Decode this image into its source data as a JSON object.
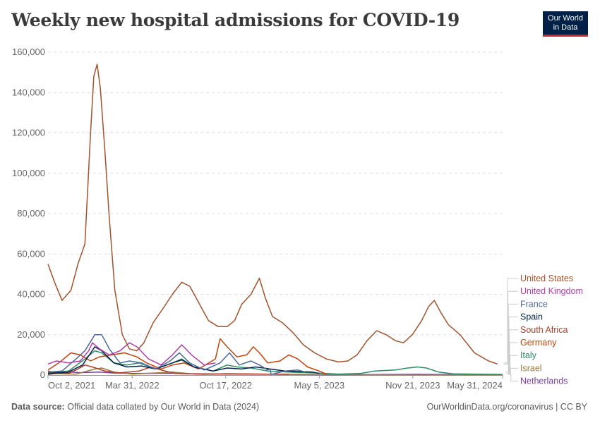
{
  "header": {
    "title": "Weekly new hospital admissions for COVID-19",
    "logo_line1": "Our World",
    "logo_line2": "in Data"
  },
  "footer": {
    "source_label": "Data source:",
    "source_text": "Official data collated by Our World in Data (2024)",
    "link_text": "OurWorldinData.org/coronavirus",
    "license": "| CC BY"
  },
  "colors": {
    "logo_bg": "#002147",
    "logo_accent": "#ce261e",
    "grid": "#dddddd"
  },
  "chart_data": {
    "type": "line",
    "title": "Weekly new hospital admissions for COVID-19",
    "xlabel": "",
    "ylabel": "",
    "ylim": [
      0,
      160000
    ],
    "y_ticks": [
      0,
      20000,
      40000,
      60000,
      80000,
      100000,
      120000,
      140000,
      160000
    ],
    "y_tick_labels": [
      "0",
      "20,000",
      "40,000",
      "60,000",
      "80,000",
      "100,000",
      "120,000",
      "140,000",
      "160,000"
    ],
    "xlim": [
      "2021-10-02",
      "2024-05-31"
    ],
    "x_ticks": [
      "2021-10-02",
      "2022-03-31",
      "2022-10-17",
      "2023-05-05",
      "2023-11-21",
      "2024-05-31"
    ],
    "x_tick_labels": [
      "Oct 2, 2021",
      "Mar 31, 2022",
      "Oct 17, 2022",
      "May 5, 2023",
      "Nov 21, 2023",
      "May 31, 2024"
    ],
    "grid": true,
    "legend_position": "right",
    "series": [
      {
        "name": "United States",
        "color": "#a2522d",
        "points": [
          [
            "2021-10-02",
            55000
          ],
          [
            "2021-10-16",
            46000
          ],
          [
            "2021-11-01",
            37000
          ],
          [
            "2021-11-20",
            42000
          ],
          [
            "2021-12-05",
            55000
          ],
          [
            "2021-12-20",
            65000
          ],
          [
            "2022-01-01",
            120000
          ],
          [
            "2022-01-08",
            148000
          ],
          [
            "2022-01-15",
            154000
          ],
          [
            "2022-01-22",
            142000
          ],
          [
            "2022-02-01",
            110000
          ],
          [
            "2022-02-10",
            78000
          ],
          [
            "2022-02-22",
            42000
          ],
          [
            "2022-03-10",
            20000
          ],
          [
            "2022-03-25",
            13000
          ],
          [
            "2022-04-10",
            12000
          ],
          [
            "2022-04-25",
            16000
          ],
          [
            "2022-05-15",
            26000
          ],
          [
            "2022-06-05",
            33000
          ],
          [
            "2022-06-25",
            40000
          ],
          [
            "2022-07-15",
            46000
          ],
          [
            "2022-08-01",
            44000
          ],
          [
            "2022-08-20",
            36000
          ],
          [
            "2022-09-10",
            27000
          ],
          [
            "2022-10-01",
            24000
          ],
          [
            "2022-10-20",
            24000
          ],
          [
            "2022-11-05",
            27000
          ],
          [
            "2022-11-20",
            35000
          ],
          [
            "2022-12-10",
            40000
          ],
          [
            "2022-12-28",
            48000
          ],
          [
            "2023-01-10",
            38000
          ],
          [
            "2023-01-25",
            29000
          ],
          [
            "2023-02-15",
            26000
          ],
          [
            "2023-03-10",
            21000
          ],
          [
            "2023-04-01",
            15000
          ],
          [
            "2023-04-25",
            11000
          ],
          [
            "2023-05-20",
            8000
          ],
          [
            "2023-06-15",
            6500
          ],
          [
            "2023-07-05",
            7000
          ],
          [
            "2023-07-25",
            10000
          ],
          [
            "2023-08-15",
            17000
          ],
          [
            "2023-09-05",
            22000
          ],
          [
            "2023-09-25",
            20000
          ],
          [
            "2023-10-15",
            17000
          ],
          [
            "2023-11-01",
            16000
          ],
          [
            "2023-11-20",
            20000
          ],
          [
            "2023-12-10",
            27000
          ],
          [
            "2023-12-25",
            34000
          ],
          [
            "2024-01-06",
            37000
          ],
          [
            "2024-01-20",
            31000
          ],
          [
            "2024-02-05",
            25000
          ],
          [
            "2024-03-01",
            20000
          ],
          [
            "2024-04-01",
            11000
          ],
          [
            "2024-05-01",
            7000
          ],
          [
            "2024-05-20",
            5500
          ]
        ]
      },
      {
        "name": "United Kingdom",
        "color": "#b13ea8",
        "points": [
          [
            "2021-10-02",
            5500
          ],
          [
            "2021-10-20",
            7000
          ],
          [
            "2021-11-15",
            6000
          ],
          [
            "2021-12-10",
            7000
          ],
          [
            "2021-12-28",
            12000
          ],
          [
            "2022-01-05",
            16000
          ],
          [
            "2022-01-20",
            13000
          ],
          [
            "2022-02-10",
            10000
          ],
          [
            "2022-03-05",
            12000
          ],
          [
            "2022-03-25",
            16000
          ],
          [
            "2022-04-10",
            14000
          ],
          [
            "2022-05-05",
            8000
          ],
          [
            "2022-06-01",
            5000
          ],
          [
            "2022-06-25",
            10000
          ],
          [
            "2022-07-15",
            15000
          ],
          [
            "2022-08-05",
            10000
          ],
          [
            "2022-09-01",
            5000
          ],
          [
            "2022-09-25",
            6000
          ]
        ]
      },
      {
        "name": "France",
        "color": "#4c6a9c",
        "points": [
          [
            "2021-10-02",
            1500
          ],
          [
            "2021-11-01",
            2000
          ],
          [
            "2021-12-01",
            8000
          ],
          [
            "2021-12-20",
            12000
          ],
          [
            "2022-01-10",
            20000
          ],
          [
            "2022-01-25",
            20000
          ],
          [
            "2022-02-10",
            13000
          ],
          [
            "2022-03-05",
            6000
          ],
          [
            "2022-03-25",
            7000
          ],
          [
            "2022-04-20",
            6000
          ],
          [
            "2022-05-20",
            3000
          ],
          [
            "2022-06-20",
            7000
          ],
          [
            "2022-07-10",
            11000
          ],
          [
            "2022-08-01",
            6000
          ],
          [
            "2022-09-01",
            2500
          ],
          [
            "2022-10-05",
            6000
          ],
          [
            "2022-10-25",
            11000
          ],
          [
            "2022-11-15",
            5000
          ],
          [
            "2022-12-10",
            7000
          ],
          [
            "2022-12-28",
            5000
          ],
          [
            "2023-01-15",
            2500
          ],
          [
            "2023-01-20",
            3000
          ],
          [
            "2023-01-22",
            300
          ],
          [
            "2023-02-20",
            2000
          ],
          [
            "2023-03-20",
            2500
          ],
          [
            "2023-04-05",
            1500
          ]
        ]
      },
      {
        "name": "Spain",
        "color": "#002147",
        "points": [
          [
            "2021-10-02",
            800
          ],
          [
            "2021-11-15",
            1500
          ],
          [
            "2021-12-15",
            5000
          ],
          [
            "2022-01-10",
            14000
          ],
          [
            "2022-01-25",
            12000
          ],
          [
            "2022-02-20",
            6000
          ],
          [
            "2022-03-20",
            4000
          ],
          [
            "2022-04-20",
            4500
          ],
          [
            "2022-05-20",
            3000
          ],
          [
            "2022-06-25",
            6000
          ],
          [
            "2022-07-15",
            7500
          ],
          [
            "2022-08-10",
            4000
          ],
          [
            "2022-09-20",
            2000
          ],
          [
            "2022-10-20",
            3500
          ],
          [
            "2022-11-20",
            3000
          ],
          [
            "2022-12-20",
            4000
          ],
          [
            "2023-01-20",
            3000
          ],
          [
            "2023-02-20",
            2000
          ],
          [
            "2023-04-20",
            1500
          ],
          [
            "2023-05-05",
            800
          ]
        ]
      },
      {
        "name": "South Africa",
        "color": "#b03f2a",
        "points": [
          [
            "2021-10-02",
            2000
          ],
          [
            "2021-10-20",
            1000
          ],
          [
            "2021-11-15",
            800
          ],
          [
            "2021-12-05",
            3000
          ],
          [
            "2021-12-20",
            5000
          ],
          [
            "2022-01-05",
            4000
          ],
          [
            "2022-02-01",
            2000
          ],
          [
            "2022-03-01",
            1000
          ],
          [
            "2022-04-15",
            2000
          ],
          [
            "2022-05-10",
            4000
          ],
          [
            "2022-06-01",
            2500
          ],
          [
            "2022-07-01",
            800
          ],
          [
            "2022-09-01",
            500
          ],
          [
            "2022-12-01",
            500
          ],
          [
            "2023-03-01",
            400
          ]
        ]
      },
      {
        "name": "Germany",
        "color": "#c1440e",
        "points": [
          [
            "2021-10-02",
            2500
          ],
          [
            "2021-10-25",
            6000
          ],
          [
            "2021-11-20",
            11000
          ],
          [
            "2021-12-10",
            10000
          ],
          [
            "2022-01-01",
            7000
          ],
          [
            "2022-01-20",
            9000
          ],
          [
            "2022-02-15",
            10000
          ],
          [
            "2022-03-15",
            11000
          ],
          [
            "2022-04-10",
            9000
          ],
          [
            "2022-05-01",
            6000
          ],
          [
            "2022-06-01",
            3000
          ],
          [
            "2022-06-25",
            5000
          ],
          [
            "2022-07-20",
            6000
          ],
          [
            "2022-08-20",
            3000
          ],
          [
            "2022-09-25",
            8000
          ],
          [
            "2022-10-05",
            18000
          ],
          [
            "2022-10-20",
            14000
          ],
          [
            "2022-11-10",
            9000
          ],
          [
            "2022-12-01",
            10000
          ],
          [
            "2022-12-15",
            14000
          ],
          [
            "2022-12-28",
            11000
          ],
          [
            "2023-01-15",
            6000
          ],
          [
            "2023-02-10",
            7000
          ],
          [
            "2023-03-01",
            10000
          ],
          [
            "2023-03-20",
            8000
          ],
          [
            "2023-04-10",
            4000
          ],
          [
            "2023-05-05",
            2000
          ],
          [
            "2023-05-20",
            500
          ]
        ]
      },
      {
        "name": "Italy",
        "color": "#2e8a65",
        "points": [
          [
            "2021-10-02",
            1000
          ],
          [
            "2021-11-15",
            2000
          ],
          [
            "2021-12-20",
            8000
          ],
          [
            "2022-01-10",
            12000
          ],
          [
            "2022-01-25",
            11000
          ],
          [
            "2022-02-20",
            6000
          ],
          [
            "2022-03-20",
            5000
          ],
          [
            "2022-04-15",
            6000
          ],
          [
            "2022-05-20",
            3000
          ],
          [
            "2022-06-25",
            6000
          ],
          [
            "2022-07-15",
            8000
          ],
          [
            "2022-08-10",
            4000
          ],
          [
            "2022-09-20",
            2000
          ],
          [
            "2022-10-20",
            5000
          ],
          [
            "2022-11-10",
            4000
          ],
          [
            "2022-12-10",
            3500
          ],
          [
            "2023-01-15",
            2000
          ],
          [
            "2023-03-01",
            1500
          ],
          [
            "2023-05-01",
            1000
          ],
          [
            "2023-06-15",
            500
          ],
          [
            "2023-08-01",
            800
          ],
          [
            "2023-09-01",
            2000
          ],
          [
            "2023-10-15",
            2500
          ],
          [
            "2023-11-10",
            3500
          ],
          [
            "2023-12-01",
            4000
          ],
          [
            "2023-12-20",
            3500
          ],
          [
            "2024-01-15",
            1500
          ],
          [
            "2024-02-15",
            600
          ],
          [
            "2024-05-31",
            300
          ]
        ]
      },
      {
        "name": "Israel",
        "color": "#9a7a3d",
        "points": [
          [
            "2021-10-02",
            800
          ],
          [
            "2021-12-01",
            500
          ],
          [
            "2022-01-10",
            3000
          ],
          [
            "2022-01-25",
            3500
          ],
          [
            "2022-02-20",
            1500
          ],
          [
            "2022-04-01",
            500
          ],
          [
            "2022-06-25",
            1500
          ],
          [
            "2022-08-01",
            700
          ],
          [
            "2022-12-01",
            500
          ],
          [
            "2023-06-01",
            200
          ],
          [
            "2024-05-31",
            100
          ]
        ]
      },
      {
        "name": "Netherlands",
        "color": "#7b3fa0",
        "points": [
          [
            "2021-10-02",
            300
          ],
          [
            "2021-11-20",
            1500
          ],
          [
            "2021-12-10",
            1200
          ],
          [
            "2022-01-20",
            1500
          ],
          [
            "2022-02-20",
            1000
          ],
          [
            "2022-04-01",
            800
          ],
          [
            "2022-06-25",
            900
          ],
          [
            "2022-09-01",
            400
          ],
          [
            "2022-10-20",
            700
          ],
          [
            "2023-01-01",
            500
          ],
          [
            "2023-06-01",
            150
          ],
          [
            "2023-12-01",
            400
          ],
          [
            "2024-05-31",
            100
          ]
        ]
      }
    ]
  }
}
